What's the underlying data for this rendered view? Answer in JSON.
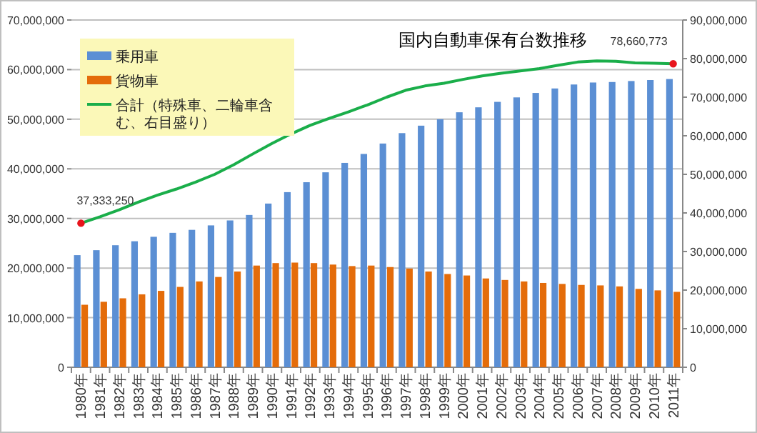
{
  "chart_data": {
    "type": "bar",
    "title": "国内自動車保有台数推移",
    "categories": [
      "1980年",
      "1981年",
      "1982年",
      "1983年",
      "1984年",
      "1985年",
      "1986年",
      "1987年",
      "1988年",
      "1989年",
      "1990年",
      "1991年",
      "1992年",
      "1993年",
      "1994年",
      "1995年",
      "1996年",
      "1997年",
      "1998年",
      "1999年",
      "2000年",
      "2001年",
      "2002年",
      "2003年",
      "2004年",
      "2005年",
      "2006年",
      "2007年",
      "2008年",
      "2009年",
      "2010年",
      "2011年"
    ],
    "series": [
      {
        "name": "乗用車",
        "color": "#5b8fd4",
        "values": [
          22600000,
          23600000,
          24600000,
          25400000,
          26300000,
          27100000,
          27700000,
          28600000,
          29600000,
          30700000,
          33000000,
          35300000,
          37300000,
          39300000,
          41200000,
          43000000,
          45100000,
          47200000,
          48700000,
          50000000,
          51400000,
          52400000,
          53500000,
          54400000,
          55300000,
          56200000,
          57000000,
          57400000,
          57500000,
          57700000,
          57900000,
          58100000
        ]
      },
      {
        "name": "貨物車",
        "color": "#e46c0a",
        "values": [
          12600000,
          13200000,
          13900000,
          14700000,
          15400000,
          16200000,
          17300000,
          18200000,
          19300000,
          20500000,
          21000000,
          21100000,
          21000000,
          20700000,
          20400000,
          20500000,
          20200000,
          19900000,
          19300000,
          18800000,
          18500000,
          17900000,
          17600000,
          17300000,
          17000000,
          16800000,
          16600000,
          16500000,
          16300000,
          15800000,
          15500000,
          15200000
        ]
      },
      {
        "name": "合計（特殊車、二輪車含む、右目盛り）",
        "type": "line",
        "axis": "y2",
        "color": "#1aae4a",
        "values": [
          37333250,
          39000000,
          40800000,
          42800000,
          44600000,
          46200000,
          48000000,
          50000000,
          52500000,
          55300000,
          58000000,
          60500000,
          62700000,
          64500000,
          66200000,
          68000000,
          70000000,
          71800000,
          72900000,
          73600000,
          74600000,
          75500000,
          76200000,
          76800000,
          77400000,
          78300000,
          79100000,
          79400000,
          79300000,
          78900000,
          78800000,
          78660773
        ],
        "value_labels": [
          "37,333,250",
          null,
          null,
          null,
          null,
          null,
          null,
          null,
          null,
          null,
          null,
          null,
          null,
          null,
          null,
          null,
          null,
          null,
          null,
          null,
          null,
          null,
          null,
          null,
          null,
          null,
          null,
          null,
          null,
          null,
          null,
          "78,660,773"
        ]
      }
    ],
    "ylim": [
      0,
      70000000
    ],
    "yticks": [
      {
        "value": 0,
        "label": "0"
      },
      {
        "value": 10000000,
        "label": "10,000,000"
      },
      {
        "value": 20000000,
        "label": "20,000,000"
      },
      {
        "value": 30000000,
        "label": "30,000,000"
      },
      {
        "value": 40000000,
        "label": "40,000,000"
      },
      {
        "value": 50000000,
        "label": "50,000,000"
      },
      {
        "value": 60000000,
        "label": "60,000,000"
      },
      {
        "value": 70000000,
        "label": "70,000,000"
      }
    ],
    "y2lim": [
      0,
      90000000
    ],
    "y2ticks": [
      {
        "value": 0,
        "label": "0"
      },
      {
        "value": 10000000,
        "label": "10,000,000"
      },
      {
        "value": 20000000,
        "label": "20,000,000"
      },
      {
        "value": 30000000,
        "label": "30,000,000"
      },
      {
        "value": 40000000,
        "label": "40,000,000"
      },
      {
        "value": 50000000,
        "label": "50,000,000"
      },
      {
        "value": 60000000,
        "label": "60,000,000"
      },
      {
        "value": 70000000,
        "label": "70,000,000"
      },
      {
        "value": 80000000,
        "label": "80,000,000"
      },
      {
        "value": 90000000,
        "label": "90,000,000"
      }
    ],
    "grid": "y",
    "legend": "top left"
  }
}
